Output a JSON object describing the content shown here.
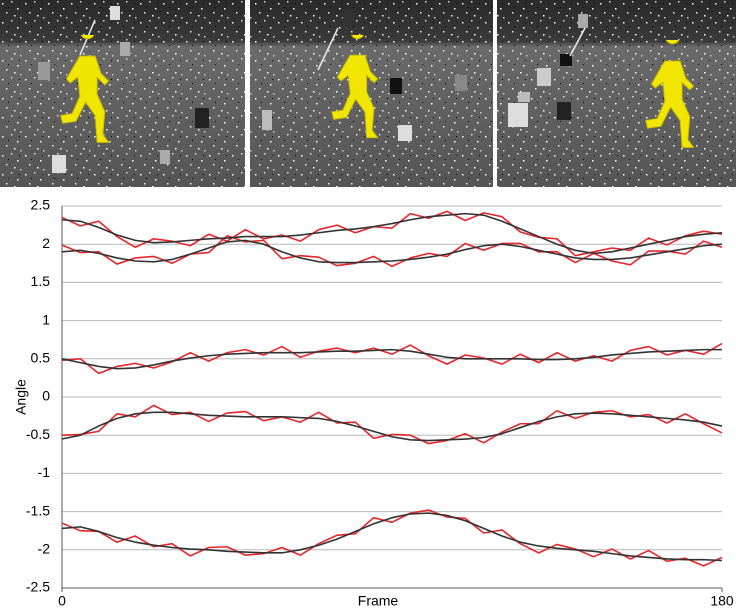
{
  "chart_data": {
    "type": "line",
    "x_label": "Frame",
    "y_label": "Angle",
    "x": [
      0,
      5,
      10,
      15,
      20,
      25,
      30,
      35,
      40,
      45,
      50,
      55,
      60,
      65,
      70,
      75,
      80,
      85,
      90,
      95,
      100,
      105,
      110,
      115,
      120,
      125,
      130,
      135,
      140,
      145,
      150,
      155,
      160,
      165,
      170,
      175,
      180
    ],
    "xlim": [
      0,
      180
    ],
    "xticks": [
      0,
      180
    ],
    "ylim": [
      -2.5,
      2.5
    ],
    "yticks": [
      -2.5,
      -2,
      -1.5,
      -1,
      -0.5,
      0,
      0.5,
      1,
      1.5,
      2,
      2.5
    ],
    "grid": true,
    "series": [
      {
        "color": "#e8262a",
        "values": [
          2.35,
          2.24,
          2.3,
          2.1,
          1.96,
          2.07,
          2.04,
          1.98,
          2.13,
          2.04,
          2.19,
          2.07,
          2.12,
          2.04,
          2.19,
          2.25,
          2.15,
          2.23,
          2.21,
          2.4,
          2.34,
          2.43,
          2.31,
          2.41,
          2.36,
          2.16,
          2.09,
          2.07,
          1.85,
          1.9,
          1.95,
          1.92,
          2.08,
          1.99,
          2.11,
          2.17,
          2.13
        ]
      },
      {
        "color": "#e8262a",
        "values": [
          1.99,
          1.89,
          1.9,
          1.74,
          1.82,
          1.84,
          1.75,
          1.87,
          1.89,
          2.11,
          2.03,
          2.05,
          1.81,
          1.85,
          1.83,
          1.72,
          1.75,
          1.84,
          1.71,
          1.82,
          1.88,
          1.84,
          2.01,
          1.92,
          2.01,
          2.01,
          1.9,
          1.9,
          1.76,
          1.88,
          1.78,
          1.73,
          1.91,
          1.91,
          1.87,
          2.04,
          1.96
        ]
      },
      {
        "color": "#e8262a",
        "values": [
          0.48,
          0.5,
          0.31,
          0.4,
          0.44,
          0.38,
          0.46,
          0.58,
          0.47,
          0.58,
          0.62,
          0.55,
          0.66,
          0.52,
          0.6,
          0.64,
          0.58,
          0.64,
          0.56,
          0.68,
          0.54,
          0.43,
          0.55,
          0.51,
          0.43,
          0.56,
          0.45,
          0.58,
          0.47,
          0.54,
          0.47,
          0.61,
          0.66,
          0.55,
          0.61,
          0.56,
          0.7
        ]
      },
      {
        "color": "#e8262a",
        "values": [
          -0.5,
          -0.49,
          -0.45,
          -0.22,
          -0.26,
          -0.11,
          -0.23,
          -0.2,
          -0.32,
          -0.21,
          -0.19,
          -0.31,
          -0.26,
          -0.33,
          -0.2,
          -0.34,
          -0.33,
          -0.54,
          -0.49,
          -0.5,
          -0.61,
          -0.57,
          -0.48,
          -0.6,
          -0.46,
          -0.35,
          -0.35,
          -0.18,
          -0.28,
          -0.2,
          -0.18,
          -0.26,
          -0.23,
          -0.34,
          -0.22,
          -0.35,
          -0.47
        ]
      },
      {
        "color": "#e8262a",
        "values": [
          -1.65,
          -1.75,
          -1.76,
          -1.9,
          -1.82,
          -1.96,
          -1.92,
          -2.08,
          -1.97,
          -1.96,
          -2.07,
          -2.05,
          -1.97,
          -2.07,
          -1.92,
          -1.81,
          -1.79,
          -1.58,
          -1.64,
          -1.52,
          -1.48,
          -1.57,
          -1.59,
          -1.78,
          -1.74,
          -1.92,
          -2.04,
          -1.93,
          -1.99,
          -2.09,
          -1.99,
          -2.12,
          -2.01,
          -2.15,
          -2.11,
          -2.21,
          -2.1
        ]
      },
      {
        "color": "#333333",
        "values": [
          2.32,
          2.3,
          2.22,
          2.12,
          2.05,
          2.02,
          2.03,
          2.05,
          2.07,
          2.08,
          2.1,
          2.1,
          2.1,
          2.12,
          2.15,
          2.18,
          2.2,
          2.23,
          2.27,
          2.32,
          2.36,
          2.38,
          2.4,
          2.38,
          2.3,
          2.2,
          2.1,
          2.0,
          1.92,
          1.88,
          1.9,
          1.95,
          2.0,
          2.05,
          2.1,
          2.13,
          2.15
        ]
      },
      {
        "color": "#333333",
        "values": [
          1.9,
          1.92,
          1.88,
          1.82,
          1.78,
          1.77,
          1.8,
          1.87,
          1.95,
          2.03,
          2.05,
          2.0,
          1.9,
          1.82,
          1.77,
          1.76,
          1.76,
          1.77,
          1.78,
          1.8,
          1.83,
          1.87,
          1.93,
          1.98,
          2.0,
          1.97,
          1.92,
          1.87,
          1.82,
          1.8,
          1.8,
          1.82,
          1.86,
          1.9,
          1.94,
          1.98,
          2.0
        ]
      },
      {
        "color": "#333333",
        "values": [
          0.5,
          0.45,
          0.4,
          0.37,
          0.38,
          0.42,
          0.47,
          0.51,
          0.54,
          0.56,
          0.57,
          0.58,
          0.58,
          0.58,
          0.59,
          0.6,
          0.6,
          0.61,
          0.62,
          0.6,
          0.56,
          0.52,
          0.5,
          0.5,
          0.5,
          0.5,
          0.49,
          0.49,
          0.5,
          0.52,
          0.55,
          0.57,
          0.59,
          0.6,
          0.61,
          0.62,
          0.62
        ]
      },
      {
        "color": "#333333",
        "values": [
          -0.55,
          -0.5,
          -0.38,
          -0.28,
          -0.22,
          -0.2,
          -0.2,
          -0.22,
          -0.24,
          -0.25,
          -0.26,
          -0.26,
          -0.26,
          -0.27,
          -0.28,
          -0.32,
          -0.38,
          -0.45,
          -0.52,
          -0.56,
          -0.57,
          -0.56,
          -0.55,
          -0.53,
          -0.48,
          -0.4,
          -0.32,
          -0.26,
          -0.22,
          -0.21,
          -0.22,
          -0.24,
          -0.26,
          -0.28,
          -0.3,
          -0.33,
          -0.38
        ]
      },
      {
        "color": "#333333",
        "values": [
          -1.72,
          -1.7,
          -1.76,
          -1.84,
          -1.9,
          -1.94,
          -1.97,
          -1.99,
          -2.0,
          -2.02,
          -2.03,
          -2.04,
          -2.04,
          -2.0,
          -1.94,
          -1.86,
          -1.76,
          -1.66,
          -1.58,
          -1.53,
          -1.52,
          -1.55,
          -1.62,
          -1.72,
          -1.82,
          -1.9,
          -1.95,
          -1.98,
          -2.0,
          -2.02,
          -2.05,
          -2.08,
          -2.1,
          -2.12,
          -2.13,
          -2.13,
          -2.14
        ]
      }
    ]
  }
}
